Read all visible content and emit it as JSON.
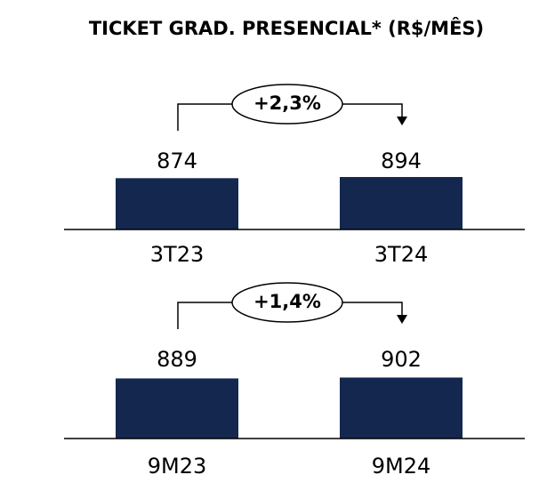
{
  "title": "TICKET GRAD. PRESENCIAL* (R$/MÊS)",
  "chart_data": [
    {
      "type": "bar",
      "categories": [
        "3T23",
        "3T24"
      ],
      "values": [
        874,
        894
      ],
      "color": "#14284f",
      "ylim": [
        0,
        1000
      ],
      "annotation": "+2,3%"
    },
    {
      "type": "bar",
      "categories": [
        "9M23",
        "9M24"
      ],
      "values": [
        889,
        902
      ],
      "color": "#14284f",
      "ylim": [
        0,
        1000
      ],
      "annotation": "+1,4%"
    }
  ]
}
